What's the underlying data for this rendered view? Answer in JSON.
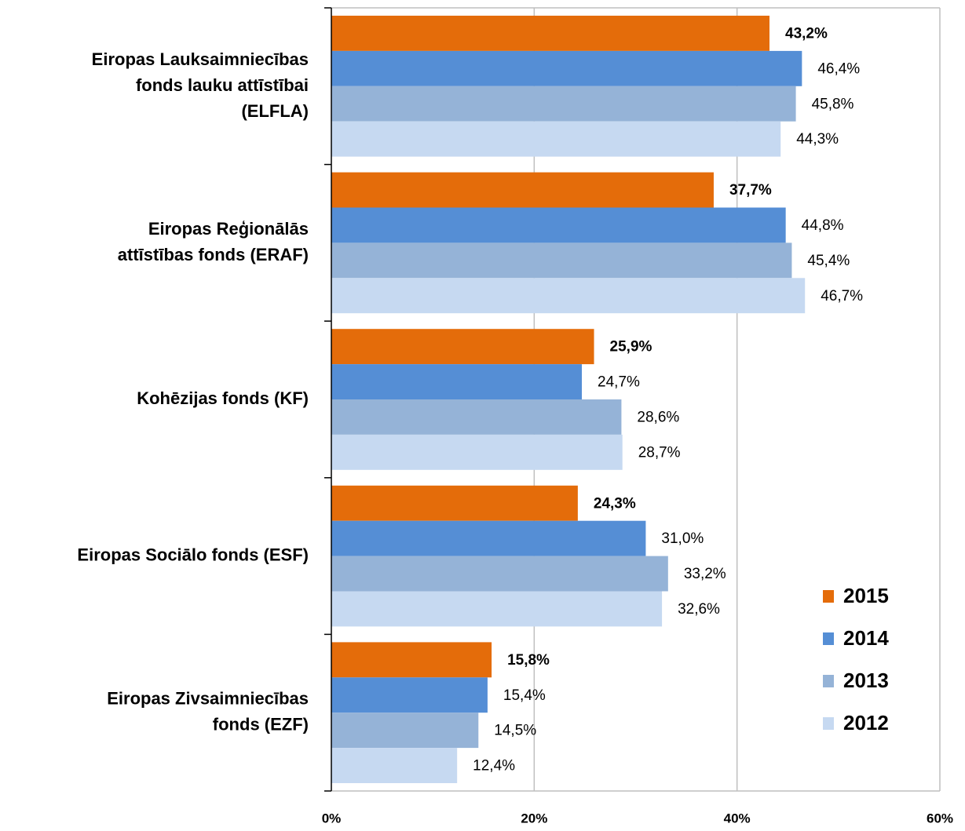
{
  "chart_data": {
    "type": "barh",
    "categories": [
      "Eiropas Lauksaimniecības\nfonds lauku attīstībai\n(ELFLA)",
      "Eiropas Reģionālās\nattīstības fonds   (ERAF)",
      "Kohēzijas fonds (KF)",
      "Eiropas Sociālo fonds (ESF)",
      "Eiropas Zivsaimniecības\nfonds (EZF)"
    ],
    "series": [
      {
        "name": "2015",
        "color": "#e46c0a",
        "values": [
          43.2,
          37.7,
          25.9,
          24.3,
          15.8
        ],
        "value_labels": [
          "43,2%",
          "37,7%",
          "25,9%",
          "24,3%",
          "15,8%"
        ]
      },
      {
        "name": "2014",
        "color": "#558ed5",
        "values": [
          46.4,
          44.8,
          24.7,
          31.0,
          15.4
        ],
        "value_labels": [
          "46,4%",
          "44,8%",
          "24,7%",
          "31,0%",
          "15,4%"
        ]
      },
      {
        "name": "2013",
        "color": "#95b3d7",
        "values": [
          45.8,
          45.4,
          28.6,
          33.2,
          14.5
        ],
        "value_labels": [
          "45,8%",
          "45,4%",
          "28,6%",
          "33,2%",
          "14,5%"
        ]
      },
      {
        "name": "2012",
        "color": "#c6d9f1",
        "values": [
          44.3,
          46.7,
          28.7,
          32.6,
          12.4
        ],
        "value_labels": [
          "44,3%",
          "46,7%",
          "28,7%",
          "32,6%",
          "12,4%"
        ]
      }
    ],
    "xlim": [
      0,
      60
    ],
    "xticks": [
      {
        "value": 0,
        "label": "0%"
      },
      {
        "value": 20,
        "label": "20%"
      },
      {
        "value": 40,
        "label": "40%"
      },
      {
        "value": 60,
        "label": "60%"
      }
    ],
    "grid": true,
    "legend": "lower right"
  }
}
